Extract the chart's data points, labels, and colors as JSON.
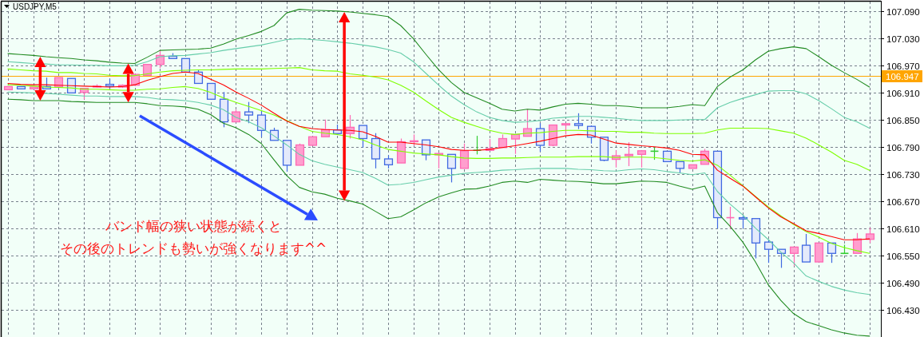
{
  "chart_data": {
    "type": "candlestick",
    "title": "USDJPY,M5",
    "categories": [
      null,
      null,
      null,
      null,
      null,
      null,
      null,
      null,
      null,
      null,
      null,
      null,
      null,
      null,
      null,
      null,
      null,
      null,
      null,
      null,
      null,
      null,
      null,
      null,
      null,
      null,
      null,
      null,
      null,
      null,
      null,
      null,
      null,
      null,
      null,
      null,
      null,
      null,
      null,
      null,
      null,
      null,
      null,
      null,
      null,
      null,
      null,
      null,
      null,
      null,
      null,
      null,
      null,
      null,
      null,
      null,
      null,
      null,
      null,
      null,
      null,
      null,
      null,
      null,
      null,
      null,
      null,
      null,
      null
    ],
    "ohlc": [
      [
        106.917,
        106.924,
        106.917,
        106.924
      ],
      [
        106.924,
        106.924,
        106.919,
        106.919
      ],
      [
        106.919,
        106.923,
        106.919,
        106.923
      ],
      [
        106.924,
        106.944,
        106.919,
        106.919
      ],
      [
        106.923,
        106.944,
        106.923,
        106.944
      ],
      [
        106.942,
        106.942,
        106.91,
        106.91
      ],
      [
        106.911,
        106.92,
        106.896,
        106.92
      ],
      [
        106.923,
        106.929,
        106.922,
        106.925
      ],
      [
        106.929,
        106.941,
        106.92,
        106.925
      ],
      [
        106.923,
        106.929,
        106.921,
        106.927
      ],
      [
        106.927,
        106.951,
        106.925,
        106.951
      ],
      [
        106.949,
        106.973,
        106.949,
        106.973
      ],
      [
        106.973,
        107.005,
        106.965,
        106.993
      ],
      [
        106.991,
        106.998,
        106.986,
        106.986
      ],
      [
        106.986,
        106.986,
        106.956,
        106.956
      ],
      [
        106.956,
        106.961,
        106.931,
        106.931
      ],
      [
        106.931,
        106.931,
        106.896,
        106.896
      ],
      [
        106.896,
        106.912,
        106.834,
        106.846
      ],
      [
        106.846,
        106.873,
        106.846,
        106.868
      ],
      [
        106.868,
        106.89,
        106.843,
        106.861
      ],
      [
        106.861,
        106.871,
        106.812,
        106.827
      ],
      [
        106.827,
        106.833,
        106.805,
        106.805
      ],
      [
        106.805,
        106.805,
        106.736,
        106.75
      ],
      [
        106.75,
        106.798,
        106.75,
        106.795
      ],
      [
        106.794,
        106.813,
        106.794,
        106.813
      ],
      [
        106.813,
        106.851,
        106.813,
        106.829
      ],
      [
        106.828,
        106.84,
        106.82,
        106.82
      ],
      [
        106.82,
        106.861,
        106.809,
        106.834
      ],
      [
        106.838,
        106.838,
        106.789,
        106.809
      ],
      [
        106.809,
        106.821,
        106.743,
        106.764
      ],
      [
        106.764,
        106.772,
        106.743,
        106.751
      ],
      [
        106.755,
        106.809,
        106.755,
        106.802
      ],
      [
        106.802,
        106.818,
        106.793,
        106.804
      ],
      [
        106.806,
        106.806,
        106.761,
        106.773
      ],
      [
        106.773,
        106.778,
        106.743,
        106.776
      ],
      [
        106.774,
        106.774,
        106.712,
        106.743
      ],
      [
        106.743,
        106.798,
        106.743,
        106.782
      ],
      [
        106.783,
        106.815,
        106.774,
        106.783
      ],
      [
        106.783,
        106.808,
        106.783,
        106.787
      ],
      [
        106.789,
        106.818,
        106.789,
        106.809
      ],
      [
        106.808,
        106.818,
        106.775,
        106.818
      ],
      [
        106.814,
        106.874,
        106.814,
        106.831
      ],
      [
        106.831,
        106.843,
        106.78,
        106.794
      ],
      [
        106.794,
        106.839,
        106.792,
        106.839
      ],
      [
        106.839,
        106.842,
        106.818,
        106.842
      ],
      [
        106.842,
        106.865,
        106.83,
        106.838
      ],
      [
        106.836,
        106.838,
        106.798,
        106.812
      ],
      [
        106.812,
        106.812,
        106.759,
        106.761
      ],
      [
        106.763,
        106.783,
        106.745,
        106.771
      ],
      [
        106.771,
        106.801,
        106.748,
        106.774
      ],
      [
        106.774,
        106.782,
        106.745,
        106.782
      ],
      [
        106.781,
        106.79,
        106.762,
        106.781
      ],
      [
        106.781,
        106.781,
        106.758,
        106.758
      ],
      [
        106.758,
        106.758,
        106.733,
        106.743
      ],
      [
        106.743,
        106.751,
        106.743,
        106.751
      ],
      [
        106.752,
        106.786,
        106.752,
        106.781
      ],
      [
        106.781,
        106.781,
        106.61,
        106.634
      ],
      [
        106.634,
        106.658,
        106.609,
        106.634
      ],
      [
        106.634,
        106.638,
        106.61,
        106.631
      ],
      [
        106.632,
        106.632,
        106.544,
        106.578
      ],
      [
        106.58,
        106.586,
        106.534,
        106.564
      ],
      [
        106.564,
        106.564,
        106.523,
        106.555
      ],
      [
        106.555,
        106.569,
        106.527,
        106.569
      ],
      [
        106.573,
        106.598,
        106.536,
        106.536
      ],
      [
        106.536,
        106.578,
        106.536,
        106.578
      ],
      [
        106.578,
        106.578,
        106.534,
        106.555
      ],
      [
        106.555,
        106.574,
        106.555,
        106.555
      ],
      [
        106.555,
        106.6,
        106.555,
        106.587
      ],
      [
        106.586,
        106.612,
        106.578,
        106.598
      ]
    ],
    "colors": [
      "#ff69b4",
      "#4169e1",
      "#ff69b4",
      "#4169e1",
      "#ff69b4",
      "#4169e1",
      "#ff69b4",
      "#ff69b4",
      "#4169e1",
      "#ff69b4",
      "#ff69b4",
      "#ff69b4",
      "#ff69b4",
      "#4169e1",
      "#4169e1",
      "#4169e1",
      "#4169e1",
      "#4169e1",
      "#ff69b4",
      "#4169e1",
      "#4169e1",
      "#4169e1",
      "#4169e1",
      "#ff69b4",
      "#ff69b4",
      "#ff69b4",
      "#4169e1",
      "#ff69b4",
      "#4169e1",
      "#4169e1",
      "#4169e1",
      "#ff69b4",
      "#ff69b4",
      "#4169e1",
      "#ff69b4",
      "#4169e1",
      "#ff69b4",
      "#32cd32",
      "#ff69b4",
      "#ff69b4",
      "#ff69b4",
      "#ff69b4",
      "#4169e1",
      "#ff69b4",
      "#ff69b4",
      "#4169e1",
      "#4169e1",
      "#4169e1",
      "#ff69b4",
      "#ff69b4",
      "#ff69b4",
      "#32cd32",
      "#4169e1",
      "#4169e1",
      "#ff69b4",
      "#ff69b4",
      "#4169e1",
      "#ff69b4",
      "#4169e1",
      "#4169e1",
      "#4169e1",
      "#4169e1",
      "#ff69b4",
      "#4169e1",
      "#ff69b4",
      "#4169e1",
      "#32cd32",
      "#ff69b4",
      "#ff69b4"
    ],
    "series": [
      {
        "type": "line",
        "color": "#228b22",
        "values": [
          106.997,
          106.995,
          106.993,
          106.99,
          106.988,
          106.986,
          106.983,
          106.981,
          106.978,
          106.976,
          106.975,
          106.989,
          107.004,
          107.005,
          107.006,
          107.007,
          107.009,
          107.018,
          107.029,
          107.037,
          107.046,
          107.059,
          107.087,
          107.095,
          107.093,
          107.092,
          107.091,
          107.089,
          107.086,
          107.083,
          107.079,
          107.059,
          107.03,
          106.995,
          106.961,
          106.933,
          106.911,
          106.899,
          106.887,
          106.874,
          106.87,
          106.874,
          106.872,
          106.879,
          106.885,
          106.887,
          106.885,
          106.882,
          106.882,
          106.88,
          106.877,
          106.877,
          106.877,
          106.88,
          106.884,
          106.882,
          106.924,
          106.945,
          106.961,
          106.983,
          107.002,
          107.008,
          107.012,
          107.008,
          106.99,
          106.971,
          106.955,
          106.94,
          106.923
        ]
      },
      {
        "type": "line",
        "color": "#66cdaa",
        "values": [
          106.979,
          106.977,
          106.975,
          106.974,
          106.972,
          106.972,
          106.971,
          106.971,
          106.97,
          106.97,
          106.971,
          106.979,
          106.99,
          106.992,
          106.993,
          106.996,
          106.999,
          107.004,
          107.008,
          107.012,
          107.016,
          107.022,
          107.028,
          107.03,
          107.028,
          107.026,
          107.023,
          107.02,
          107.016,
          107.012,
          107.006,
          106.998,
          106.979,
          106.953,
          106.927,
          106.903,
          106.884,
          106.868,
          106.856,
          106.849,
          106.845,
          106.846,
          106.849,
          106.854,
          106.856,
          106.858,
          106.858,
          106.856,
          106.854,
          106.851,
          106.849,
          106.849,
          106.849,
          106.85,
          106.851,
          106.851,
          106.877,
          106.889,
          106.898,
          106.906,
          106.914,
          106.915,
          106.915,
          106.908,
          106.893,
          106.875,
          106.856,
          106.846,
          106.832
        ]
      },
      {
        "type": "line",
        "color": "#7fff00",
        "values": [
          106.963,
          106.961,
          106.959,
          106.958,
          106.955,
          106.955,
          106.953,
          106.952,
          106.949,
          106.948,
          106.948,
          106.952,
          106.956,
          106.959,
          106.96,
          106.961,
          106.961,
          106.962,
          106.963,
          106.963,
          106.963,
          106.964,
          106.965,
          106.966,
          106.961,
          106.959,
          106.958,
          106.952,
          106.949,
          106.945,
          106.939,
          106.927,
          106.912,
          106.892,
          106.873,
          106.856,
          106.845,
          106.836,
          106.827,
          106.821,
          106.818,
          106.821,
          106.822,
          106.825,
          106.827,
          106.827,
          106.826,
          106.825,
          106.825,
          106.823,
          106.823,
          106.821,
          106.82,
          106.82,
          106.82,
          106.821,
          106.828,
          106.832,
          106.832,
          106.832,
          106.831,
          106.826,
          106.821,
          106.81,
          106.795,
          106.779,
          106.761,
          106.752,
          106.739
        ]
      },
      {
        "type": "line",
        "color": "#7fff00",
        "values": [
          106.928,
          106.927,
          106.925,
          106.923,
          106.922,
          106.921,
          106.918,
          106.918,
          106.917,
          106.916,
          106.916,
          106.918,
          106.919,
          106.922,
          106.924,
          106.92,
          106.911,
          106.899,
          106.889,
          106.88,
          106.871,
          106.861,
          106.849,
          106.836,
          106.825,
          106.821,
          106.818,
          106.813,
          106.806,
          106.795,
          106.785,
          106.781,
          106.777,
          106.775,
          106.773,
          106.769,
          106.766,
          106.765,
          106.765,
          106.766,
          106.766,
          106.767,
          106.768,
          106.768,
          106.768,
          106.769,
          106.769,
          106.769,
          106.767,
          106.768,
          106.768,
          106.767,
          106.764,
          106.761,
          106.759,
          106.762,
          106.75,
          106.728,
          106.705,
          106.681,
          106.658,
          106.638,
          106.619,
          106.603,
          106.591,
          106.577,
          106.568,
          106.561,
          106.555
        ]
      },
      {
        "type": "line",
        "color": "#66cdaa",
        "values": [
          106.912,
          106.911,
          106.91,
          106.909,
          106.907,
          106.905,
          106.903,
          106.903,
          106.902,
          106.902,
          106.902,
          106.9,
          106.896,
          106.895,
          106.893,
          106.889,
          106.883,
          106.873,
          106.856,
          106.846,
          106.833,
          106.815,
          106.795,
          106.774,
          106.76,
          106.752,
          106.746,
          106.74,
          106.734,
          106.721,
          106.706,
          106.708,
          106.712,
          106.718,
          106.724,
          106.728,
          106.732,
          106.734,
          106.736,
          106.739,
          106.74,
          106.742,
          106.743,
          106.743,
          106.743,
          106.741,
          106.74,
          106.738,
          106.737,
          106.74,
          106.742,
          106.74,
          106.736,
          106.733,
          106.729,
          106.733,
          106.692,
          106.664,
          106.64,
          106.611,
          106.586,
          106.558,
          106.534,
          106.505,
          106.493,
          106.482,
          106.474,
          106.468,
          106.464
        ]
      },
      {
        "type": "line",
        "color": "#228b22",
        "values": [
          106.896,
          106.895,
          106.893,
          106.893,
          106.893,
          106.891,
          106.89,
          106.889,
          106.889,
          106.889,
          106.889,
          106.886,
          106.882,
          106.881,
          106.879,
          106.874,
          106.862,
          106.843,
          106.833,
          106.818,
          106.798,
          106.762,
          106.727,
          106.701,
          106.691,
          106.686,
          106.677,
          106.671,
          106.664,
          106.648,
          106.632,
          106.636,
          106.651,
          106.667,
          106.68,
          106.689,
          106.697,
          106.698,
          106.704,
          106.712,
          106.715,
          106.712,
          106.719,
          106.717,
          106.715,
          106.714,
          106.712,
          106.709,
          106.709,
          106.712,
          106.715,
          106.714,
          106.712,
          106.704,
          106.697,
          106.704,
          106.645,
          106.615,
          106.58,
          106.536,
          106.486,
          106.451,
          106.422,
          106.404,
          106.395,
          106.386,
          106.379,
          106.374,
          106.372
        ]
      },
      {
        "type": "line",
        "color": "#ff0000",
        "values": [
          106.931,
          106.929,
          106.928,
          106.928,
          106.927,
          106.926,
          106.925,
          106.924,
          106.923,
          106.924,
          106.928,
          106.938,
          106.946,
          106.953,
          106.956,
          106.953,
          106.94,
          106.928,
          106.912,
          106.898,
          106.883,
          106.865,
          106.848,
          106.836,
          106.831,
          106.829,
          106.828,
          106.827,
          106.824,
          106.814,
          106.801,
          106.801,
          106.798,
          106.795,
          106.791,
          106.785,
          106.783,
          106.783,
          106.785,
          106.789,
          106.793,
          106.798,
          106.803,
          106.809,
          106.815,
          106.818,
          106.817,
          106.808,
          106.799,
          106.796,
          106.793,
          106.791,
          106.788,
          106.783,
          106.774,
          106.773,
          106.739,
          106.721,
          106.704,
          106.68,
          106.656,
          106.636,
          106.621,
          106.605,
          106.599,
          106.592,
          106.585,
          106.585,
          106.587
        ]
      }
    ],
    "ylim": [
      106.37,
      107.112
    ],
    "yticks": [
      {
        "value": 106.43,
        "label": "106.430"
      },
      {
        "value": 106.49,
        "label": "106.490"
      },
      {
        "value": 106.55,
        "label": "106.550"
      },
      {
        "value": 106.61,
        "label": "106.610"
      },
      {
        "value": 106.67,
        "label": "106.670"
      },
      {
        "value": 106.73,
        "label": "106.730"
      },
      {
        "value": 106.79,
        "label": "106.790"
      },
      {
        "value": 106.85,
        "label": "106.850"
      },
      {
        "value": 106.91,
        "label": "106.910"
      },
      {
        "value": 106.97,
        "label": "106.970"
      },
      {
        "value": 107.03,
        "label": "107.030"
      },
      {
        "value": 107.09,
        "label": "107.090"
      }
    ],
    "ref_lines": [
      {
        "axis": "y",
        "value": 106.947,
        "label": "106.947",
        "color": "#ffa500"
      }
    ],
    "annotations": [
      "バンド幅の狭い状態が続くと",
      "その後のトレンドも勢いが強くなります^^"
    ],
    "grid": true,
    "tick_labels": "y"
  }
}
